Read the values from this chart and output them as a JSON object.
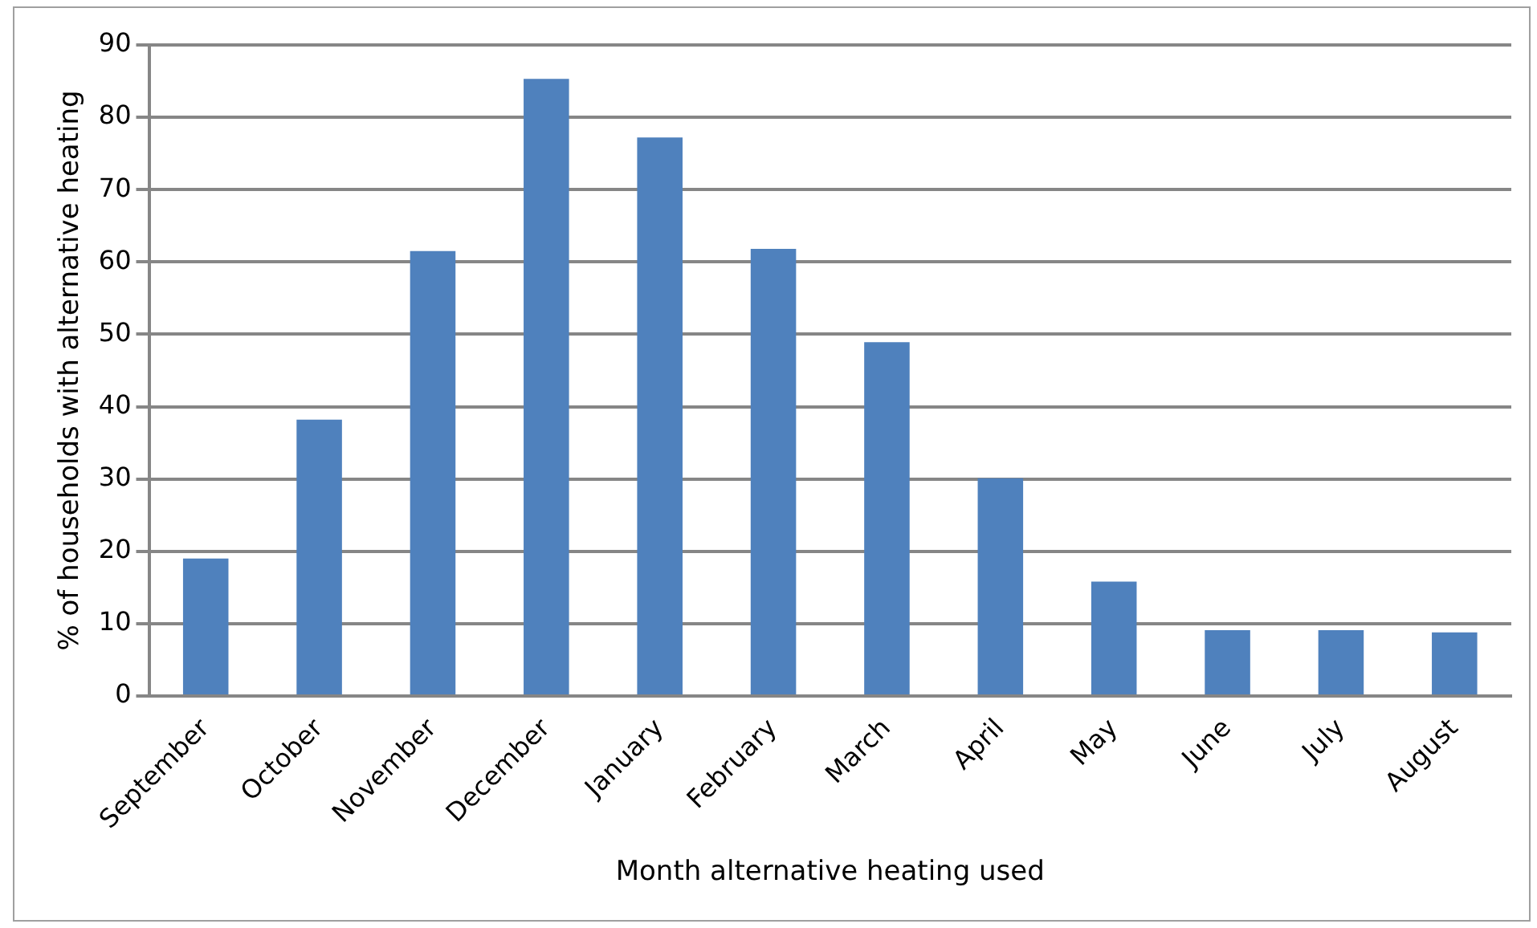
{
  "chart_data": {
    "type": "bar",
    "xlabel": "Month alternative heating used",
    "ylabel": "% of households with alternative heating",
    "categories": [
      "September",
      "October",
      "November",
      "December",
      "January",
      "February",
      "March",
      "April",
      "May",
      "June",
      "July",
      "August"
    ],
    "values": [
      19,
      38.2,
      61.5,
      85.3,
      77.2,
      61.8,
      48.9,
      30.1,
      15.8,
      9.1,
      9.1,
      8.8
    ],
    "color": "#4f81bd",
    "ylim": [
      0,
      90
    ],
    "yticks": [
      0,
      10,
      20,
      30,
      40,
      50,
      60,
      70,
      80,
      90
    ],
    "grid": "y",
    "legend": false
  }
}
